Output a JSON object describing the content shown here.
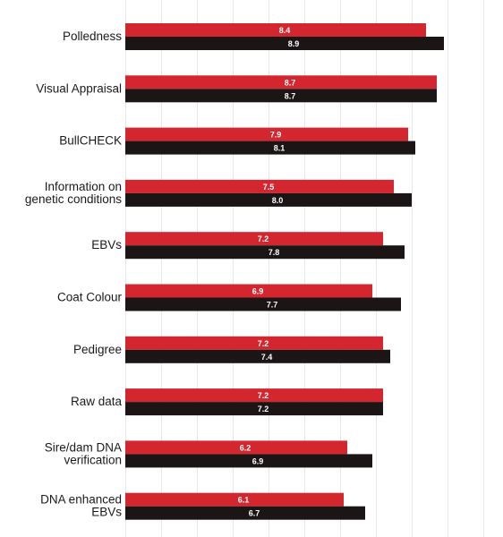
{
  "chart_data": {
    "type": "bar",
    "orientation": "horizontal",
    "categories": [
      "Polledness",
      "Visual Appraisal",
      "BullCHECK",
      "Information on genetic conditions",
      "EBVs",
      "Coat Colour",
      "Pedigree",
      "Raw data",
      "Sire/dam DNA verification",
      "DNA enhanced EBVs"
    ],
    "category_lines": [
      [
        "Polledness"
      ],
      [
        "Visual Appraisal"
      ],
      [
        "BullCHECK"
      ],
      [
        "Information on",
        "genetic conditions"
      ],
      [
        "EBVs"
      ],
      [
        "Coat Colour"
      ],
      [
        "Pedigree"
      ],
      [
        "Raw data"
      ],
      [
        "Sire/dam DNA",
        "verification"
      ],
      [
        "DNA enhanced",
        "EBVs"
      ]
    ],
    "series": [
      {
        "values": [
          8.4,
          8.7,
          7.9,
          7.5,
          7.2,
          6.9,
          7.2,
          7.2,
          6.2,
          6.1
        ],
        "color": "#d3262f"
      },
      {
        "values": [
          8.9,
          8.7,
          8.1,
          8.0,
          7.8,
          7.7,
          7.4,
          7.2,
          6.9,
          6.7
        ],
        "color": "#1c1516"
      }
    ],
    "value_labels": [
      [
        "8.4",
        "8.7",
        "7.9",
        "7.5",
        "7.2",
        "6.9",
        "7.2",
        "7.2",
        "6.2",
        "6.1"
      ],
      [
        "8.9",
        "8.7",
        "8.1",
        "8.0",
        "7.8",
        "7.7",
        "7.4",
        "7.2",
        "6.9",
        "6.7"
      ]
    ],
    "xlim": [
      0,
      10
    ],
    "grid": true,
    "legend": "none",
    "title": "",
    "xlabel": "",
    "ylabel": ""
  }
}
